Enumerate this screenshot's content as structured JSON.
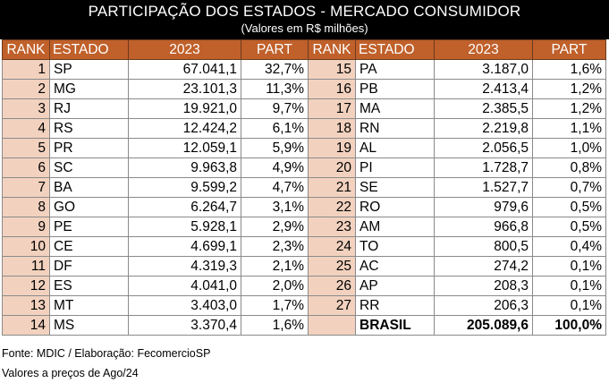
{
  "header": {
    "title": "PARTICIPAÇÃO DOS ESTADOS - MERCADO CONSUMIDOR",
    "subtitle": "(Valores em R$ milhões)"
  },
  "columns": [
    "RANK",
    "ESTADO",
    "2023",
    "PART",
    "RANK",
    "ESTADO",
    "2023",
    "PART"
  ],
  "rows": [
    {
      "l_rank": "1",
      "l_state": "SP",
      "l_value": "67.041,1",
      "l_part": "32,7%",
      "r_rank": "15",
      "r_state": "PA",
      "r_value": "3.187,0",
      "r_part": "1,6%"
    },
    {
      "l_rank": "2",
      "l_state": "MG",
      "l_value": "23.101,3",
      "l_part": "11,3%",
      "r_rank": "16",
      "r_state": "PB",
      "r_value": "2.413,4",
      "r_part": "1,2%"
    },
    {
      "l_rank": "3",
      "l_state": "RJ",
      "l_value": "19.921,0",
      "l_part": "9,7%",
      "r_rank": "17",
      "r_state": "MA",
      "r_value": "2.385,5",
      "r_part": "1,2%"
    },
    {
      "l_rank": "4",
      "l_state": "RS",
      "l_value": "12.424,2",
      "l_part": "6,1%",
      "r_rank": "18",
      "r_state": "RN",
      "r_value": "2.219,8",
      "r_part": "1,1%"
    },
    {
      "l_rank": "5",
      "l_state": "PR",
      "l_value": "12.059,1",
      "l_part": "5,9%",
      "r_rank": "19",
      "r_state": "AL",
      "r_value": "2.056,5",
      "r_part": "1,0%"
    },
    {
      "l_rank": "6",
      "l_state": "SC",
      "l_value": "9.963,8",
      "l_part": "4,9%",
      "r_rank": "20",
      "r_state": "PI",
      "r_value": "1.728,7",
      "r_part": "0,8%"
    },
    {
      "l_rank": "7",
      "l_state": "BA",
      "l_value": "9.599,2",
      "l_part": "4,7%",
      "r_rank": "21",
      "r_state": "SE",
      "r_value": "1.527,7",
      "r_part": "0,7%"
    },
    {
      "l_rank": "8",
      "l_state": "GO",
      "l_value": "6.264,7",
      "l_part": "3,1%",
      "r_rank": "22",
      "r_state": "RO",
      "r_value": "979,6",
      "r_part": "0,5%"
    },
    {
      "l_rank": "9",
      "l_state": "PE",
      "l_value": "5.928,1",
      "l_part": "2,9%",
      "r_rank": "23",
      "r_state": "AM",
      "r_value": "966,8",
      "r_part": "0,5%"
    },
    {
      "l_rank": "10",
      "l_state": "CE",
      "l_value": "4.699,1",
      "l_part": "2,3%",
      "r_rank": "24",
      "r_state": "TO",
      "r_value": "800,5",
      "r_part": "0,4%"
    },
    {
      "l_rank": "11",
      "l_state": "DF",
      "l_value": "4.319,3",
      "l_part": "2,1%",
      "r_rank": "25",
      "r_state": "AC",
      "r_value": "274,2",
      "r_part": "0,1%"
    },
    {
      "l_rank": "12",
      "l_state": "ES",
      "l_value": "4.041,0",
      "l_part": "2,0%",
      "r_rank": "26",
      "r_state": "AP",
      "r_value": "208,3",
      "r_part": "0,1%"
    },
    {
      "l_rank": "13",
      "l_state": "MT",
      "l_value": "3.403,0",
      "l_part": "1,7%",
      "r_rank": "27",
      "r_state": "RR",
      "r_value": "206,3",
      "r_part": "0,1%"
    },
    {
      "l_rank": "14",
      "l_state": "MS",
      "l_value": "3.370,4",
      "l_part": "1,6%",
      "r_rank": "",
      "r_state": "BRASIL",
      "r_value": "205.089,6",
      "r_part": "100,0%"
    }
  ],
  "footer": {
    "source": "Fonte: MDIC / Elaboração: FecomercioSP",
    "note": "Valores a preços de Ago/24"
  },
  "colors": {
    "header_bg": "#000000",
    "column_header_bg": "#c0602a",
    "rank_cell_bg": "#f2d2bf"
  }
}
